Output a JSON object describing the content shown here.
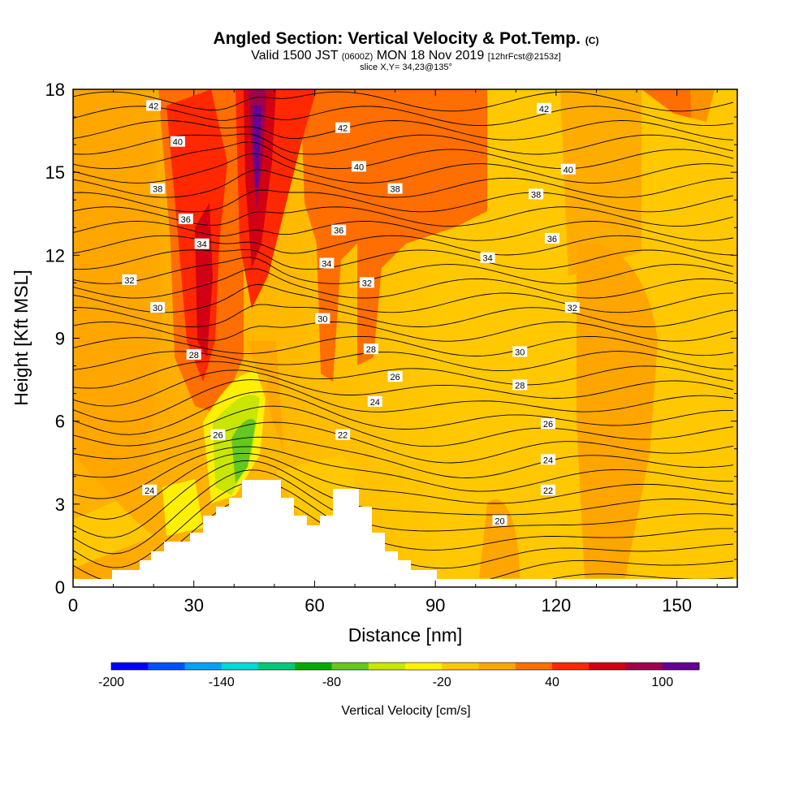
{
  "header": {
    "title": "Angled Section: Vertical Velocity & Pot.Temp.",
    "title_mark": "(C)",
    "subtitle_a": "Valid 1500 JST",
    "subtitle_b": "(0600Z)",
    "subtitle_c": "MON 18 Nov 2019",
    "subtitle_d": "[12hrFcst@2153z]",
    "slice": "slice X,Y= 34,23@135°"
  },
  "chart_data": {
    "type": "heatmap",
    "xlabel": "Distance [nm]",
    "ylabel": "Height [Kft MSL]",
    "xlim": [
      0,
      165
    ],
    "ylim": [
      0,
      18
    ],
    "xticks": [
      0,
      30,
      60,
      90,
      120,
      150
    ],
    "yticks": [
      0,
      3,
      6,
      9,
      12,
      15,
      18
    ],
    "colorbar": {
      "label": "Vertical Velocity [cm/s]",
      "ticks": [
        "-200",
        "-140",
        "-80",
        "-20",
        "40",
        "100"
      ],
      "colors": [
        "#0000ff",
        "#0050ff",
        "#00a0ff",
        "#00d7d7",
        "#00c878",
        "#00aa00",
        "#64c81e",
        "#c8e600",
        "#fff000",
        "#ffc800",
        "#ffa500",
        "#ff6e00",
        "#ff2800",
        "#d20014",
        "#a0004b",
        "#640096"
      ]
    },
    "contour_field": "Pot.Temp.",
    "contour_labels": [
      {
        "text": "42",
        "x": 20,
        "y": 17.4
      },
      {
        "text": "40",
        "x": 26,
        "y": 16.1
      },
      {
        "text": "38",
        "x": 21,
        "y": 14.4
      },
      {
        "text": "36",
        "x": 28,
        "y": 13.3
      },
      {
        "text": "34",
        "x": 32,
        "y": 12.4
      },
      {
        "text": "32",
        "x": 14,
        "y": 11.1
      },
      {
        "text": "30",
        "x": 21,
        "y": 10.1
      },
      {
        "text": "28",
        "x": 30,
        "y": 8.4
      },
      {
        "text": "26",
        "x": 36,
        "y": 5.5
      },
      {
        "text": "24",
        "x": 19,
        "y": 3.5
      },
      {
        "text": "42",
        "x": 67,
        "y": 16.6
      },
      {
        "text": "40",
        "x": 71,
        "y": 15.2
      },
      {
        "text": "38",
        "x": 80,
        "y": 14.4
      },
      {
        "text": "36",
        "x": 66,
        "y": 12.9
      },
      {
        "text": "34",
        "x": 63,
        "y": 11.7
      },
      {
        "text": "32",
        "x": 73,
        "y": 11.0
      },
      {
        "text": "30",
        "x": 62,
        "y": 9.7
      },
      {
        "text": "28",
        "x": 74,
        "y": 8.6
      },
      {
        "text": "26",
        "x": 80,
        "y": 7.6
      },
      {
        "text": "24",
        "x": 75,
        "y": 6.7
      },
      {
        "text": "22",
        "x": 67,
        "y": 5.5
      },
      {
        "text": "42",
        "x": 117,
        "y": 17.3
      },
      {
        "text": "40",
        "x": 123,
        "y": 15.1
      },
      {
        "text": "38",
        "x": 115,
        "y": 14.2
      },
      {
        "text": "36",
        "x": 119,
        "y": 12.6
      },
      {
        "text": "34",
        "x": 103,
        "y": 11.9
      },
      {
        "text": "32",
        "x": 124,
        "y": 10.1
      },
      {
        "text": "30",
        "x": 111,
        "y": 8.5
      },
      {
        "text": "28",
        "x": 111,
        "y": 7.3
      },
      {
        "text": "26",
        "x": 118,
        "y": 5.9
      },
      {
        "text": "24",
        "x": 118,
        "y": 4.6
      },
      {
        "text": "22",
        "x": 118,
        "y": 3.5
      },
      {
        "text": "20",
        "x": 106,
        "y": 2.4
      }
    ]
  }
}
